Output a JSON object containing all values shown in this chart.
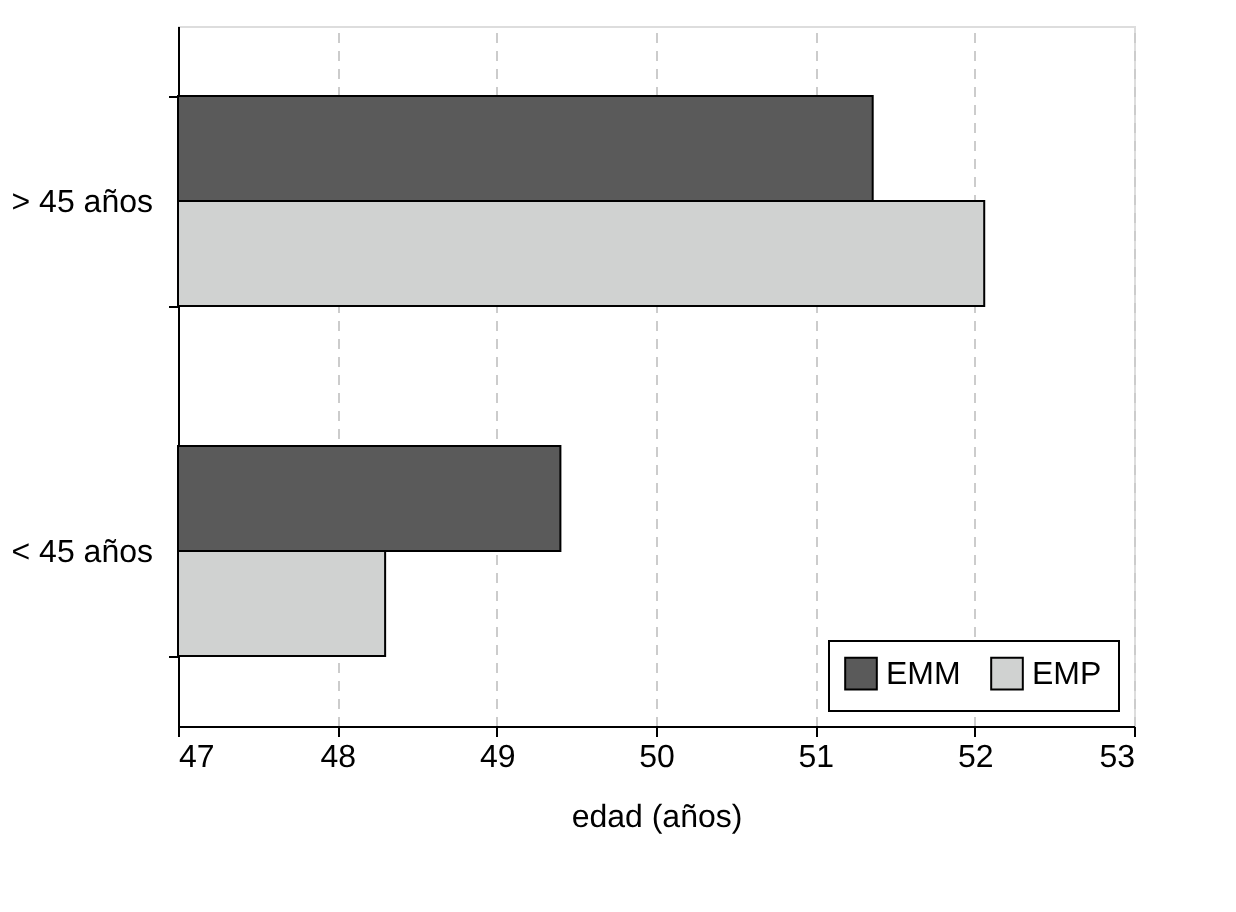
{
  "chart_data": {
    "type": "bar",
    "orientation": "horizontal",
    "xlabel": "edad (años)",
    "categories": [
      "> 45 años",
      "< 45 años"
    ],
    "series": [
      {
        "name": "EMM",
        "color": "#5a5a5a",
        "values": [
          51.36,
          49.4
        ]
      },
      {
        "name": "EMP",
        "color": "#d0d2d1",
        "values": [
          52.06,
          48.3
        ]
      }
    ],
    "xlim": [
      47,
      53
    ],
    "xticks": [
      47,
      48,
      49,
      50,
      51,
      52,
      53
    ],
    "grid": "x",
    "legend": "bottom right"
  }
}
